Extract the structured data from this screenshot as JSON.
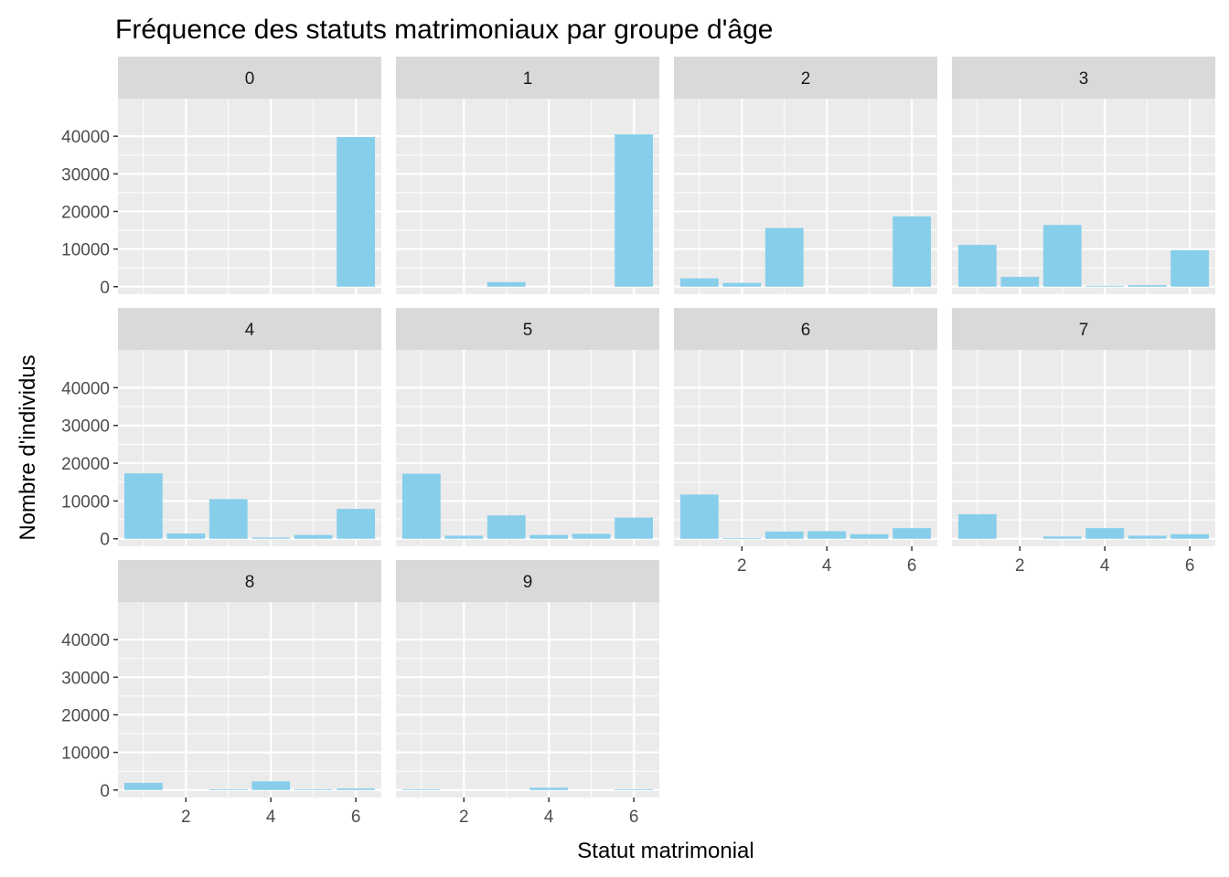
{
  "chart_data": {
    "type": "bar",
    "title": "Fréquence des statuts matrimoniaux par groupe d'âge",
    "xlabel": "Statut matrimonial",
    "ylabel": "Nombre d'individus",
    "x": [
      1,
      2,
      3,
      4,
      5,
      6
    ],
    "x_ticks": [
      2,
      4,
      6
    ],
    "xlim": [
      0.4,
      6.6
    ],
    "y_ticks": [
      0,
      10000,
      20000,
      30000,
      40000
    ],
    "ylim": [
      -2000,
      50000
    ],
    "grid": true,
    "bar_color": "#87CEEB",
    "panel_background": "#EBEBEB",
    "strip_background": "#D9D9D9",
    "facets": [
      {
        "label": "0",
        "values": [
          0,
          0,
          0,
          0,
          0,
          39800
        ]
      },
      {
        "label": "1",
        "values": [
          0,
          0,
          1200,
          0,
          0,
          40500
        ]
      },
      {
        "label": "2",
        "values": [
          2200,
          1000,
          15600,
          0,
          0,
          18700
        ]
      },
      {
        "label": "3",
        "values": [
          11100,
          2600,
          16400,
          200,
          400,
          9700
        ]
      },
      {
        "label": "4",
        "values": [
          17300,
          1400,
          10500,
          300,
          1000,
          7900
        ]
      },
      {
        "label": "5",
        "values": [
          17200,
          800,
          6200,
          1000,
          1300,
          5600
        ]
      },
      {
        "label": "6",
        "values": [
          11700,
          200,
          1900,
          2000,
          1200,
          2800
        ]
      },
      {
        "label": "7",
        "values": [
          6500,
          0,
          600,
          2800,
          800,
          1200
        ]
      },
      {
        "label": "8",
        "values": [
          1900,
          0,
          200,
          2300,
          200,
          400
        ]
      },
      {
        "label": "9",
        "values": [
          200,
          0,
          0,
          600,
          0,
          200
        ]
      }
    ]
  }
}
